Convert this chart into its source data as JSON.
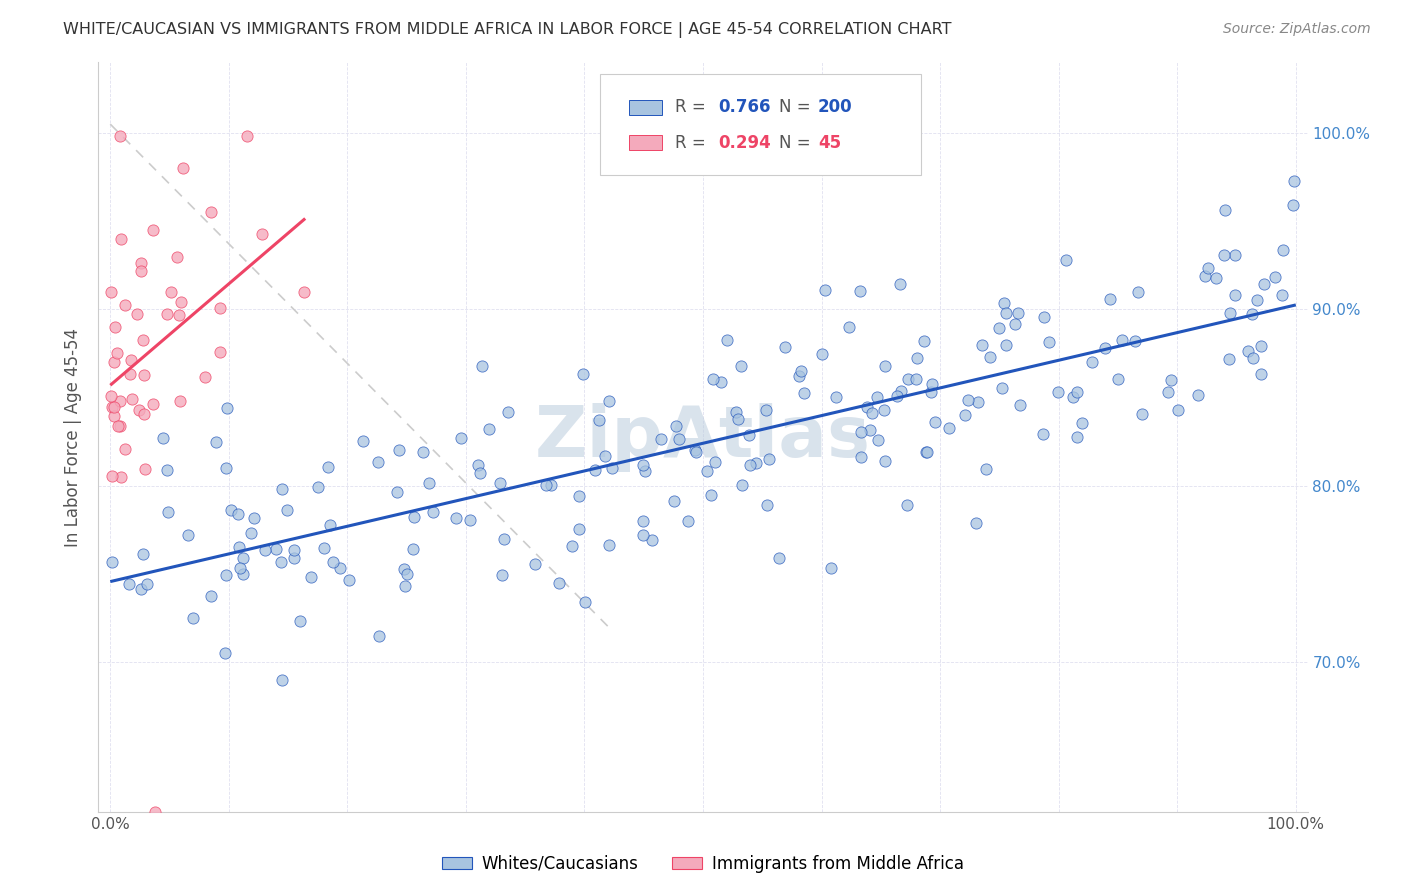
{
  "title": "WHITE/CAUCASIAN VS IMMIGRANTS FROM MIDDLE AFRICA IN LABOR FORCE | AGE 45-54 CORRELATION CHART",
  "source": "Source: ZipAtlas.com",
  "ylabel": "In Labor Force | Age 45-54",
  "blue_R": 0.766,
  "blue_N": 200,
  "pink_R": 0.294,
  "pink_N": 45,
  "blue_color": "#A8C4E0",
  "pink_color": "#F4AABC",
  "trend_blue": "#2255BB",
  "trend_pink": "#EE4466",
  "diagonal_color": "#CCCCCC",
  "watermark": "ZipAtlas",
  "watermark_color": "#BBCCDD",
  "legend_label_blue": "Whites/Caucasians",
  "legend_label_pink": "Immigrants from Middle Africa",
  "right_yticklabels": [
    "70.0%",
    "80.0%",
    "90.0%",
    "100.0%"
  ],
  "right_yticks": [
    0.7,
    0.8,
    0.9,
    1.0
  ],
  "ylim_low": 0.615,
  "ylim_high": 1.04,
  "xlim_low": -0.01,
  "xlim_high": 1.01
}
